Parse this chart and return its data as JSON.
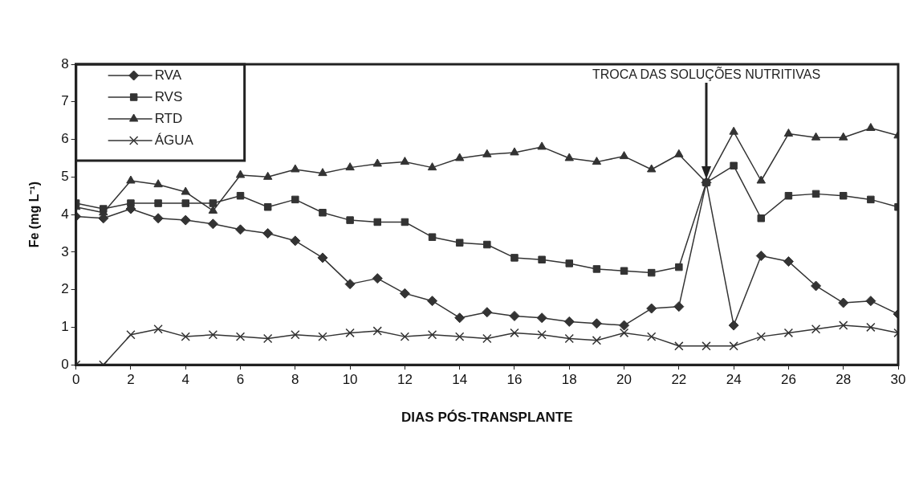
{
  "chart_data": {
    "type": "line",
    "xlabel": "DIAS PÓS-TRANSPLANTE",
    "ylabel": "Fe (mg L⁻¹)",
    "x": [
      0,
      1,
      2,
      3,
      4,
      5,
      6,
      7,
      8,
      9,
      10,
      11,
      12,
      13,
      14,
      15,
      16,
      17,
      18,
      19,
      20,
      21,
      22,
      23,
      24,
      25,
      26,
      27,
      28,
      29,
      30
    ],
    "xlim": [
      0,
      30
    ],
    "xticks": [
      0,
      2,
      4,
      6,
      8,
      10,
      12,
      14,
      16,
      18,
      20,
      22,
      24,
      26,
      28,
      30
    ],
    "ylim": [
      0,
      8
    ],
    "yticks": [
      0,
      1,
      2,
      3,
      4,
      5,
      6,
      7,
      8
    ],
    "grid": false,
    "legend": "top left",
    "line_style": "solid",
    "ref_lines": [
      {
        "axis": "x",
        "value": 23,
        "label": "TROCA DAS SOLUÇÕES NUTRITIVAS",
        "color": "#222222"
      }
    ],
    "series": [
      {
        "name": "RVA",
        "color": "#333333",
        "marker": "diamond",
        "values": [
          3.95,
          3.9,
          4.15,
          3.9,
          3.85,
          3.75,
          3.6,
          3.5,
          3.3,
          2.85,
          2.15,
          2.3,
          1.9,
          1.7,
          1.25,
          1.4,
          1.3,
          1.25,
          1.15,
          1.1,
          1.05,
          1.5,
          1.55,
          4.85,
          1.05,
          2.9,
          2.75,
          2.1,
          1.65,
          1.7,
          1.35
        ]
      },
      {
        "name": "RVS",
        "color": "#333333",
        "marker": "square",
        "values": [
          4.3,
          4.15,
          4.3,
          4.3,
          4.3,
          4.3,
          4.5,
          4.2,
          4.4,
          4.05,
          3.85,
          3.8,
          3.8,
          3.4,
          3.25,
          3.2,
          2.85,
          2.8,
          2.7,
          2.55,
          2.5,
          2.45,
          2.6,
          4.85,
          5.3,
          3.9,
          4.5,
          4.55,
          4.5,
          4.4,
          4.2
        ]
      },
      {
        "name": "RTD",
        "color": "#333333",
        "marker": "triangle",
        "values": [
          4.2,
          4.05,
          4.9,
          4.8,
          4.6,
          4.1,
          5.05,
          5.0,
          5.2,
          5.1,
          5.25,
          5.35,
          5.4,
          5.25,
          5.5,
          5.6,
          5.65,
          5.8,
          5.5,
          5.4,
          5.55,
          5.2,
          5.6,
          4.85,
          6.2,
          4.9,
          6.15,
          6.05,
          6.05,
          6.3,
          6.1
        ]
      },
      {
        "name": "ÁGUA",
        "color": "#333333",
        "marker": "cross",
        "values": [
          0,
          0,
          0.8,
          0.95,
          0.75,
          0.8,
          0.75,
          0.7,
          0.8,
          0.75,
          0.85,
          0.9,
          0.75,
          0.8,
          0.75,
          0.7,
          0.85,
          0.8,
          0.7,
          0.65,
          0.85,
          0.75,
          0.5,
          0.5,
          0.5,
          0.75,
          0.85,
          0.95,
          1.05,
          1.0,
          0.85
        ]
      }
    ]
  }
}
